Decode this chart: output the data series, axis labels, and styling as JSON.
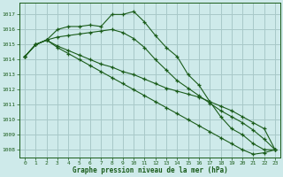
{
  "title": "Graphe pression niveau de la mer (hPa)",
  "bg_color": "#ceeaea",
  "grid_color": "#a8c8c8",
  "line_color": "#1a5c1a",
  "xlim": [
    -0.5,
    23.5
  ],
  "ylim": [
    1007.5,
    1017.8
  ],
  "yticks": [
    1008,
    1009,
    1010,
    1011,
    1012,
    1013,
    1014,
    1015,
    1016,
    1017
  ],
  "xticks": [
    0,
    1,
    2,
    3,
    4,
    5,
    6,
    7,
    8,
    9,
    10,
    11,
    12,
    13,
    14,
    15,
    16,
    17,
    18,
    19,
    20,
    21,
    22,
    23
  ],
  "series": [
    [
      1014.2,
      1015.0,
      1015.3,
      1016.0,
      1016.2,
      1016.2,
      1016.3,
      1016.2,
      1017.0,
      1017.0,
      1017.2,
      1016.5,
      1015.6,
      1014.8,
      1014.2,
      1013.0,
      1012.3,
      1011.2,
      1010.2,
      1009.4,
      1009.0,
      1008.4,
      1008.0,
      1008.0
    ],
    [
      1014.2,
      1015.0,
      1015.3,
      1015.5,
      1015.6,
      1015.7,
      1015.8,
      1015.9,
      1016.0,
      1015.8,
      1015.4,
      1014.8,
      1014.0,
      1013.3,
      1012.6,
      1012.1,
      1011.6,
      1011.1,
      1010.6,
      1010.2,
      1009.8,
      1009.3,
      1008.7,
      1008.0
    ],
    [
      1014.2,
      1015.0,
      1015.3,
      1014.9,
      1014.6,
      1014.3,
      1014.0,
      1013.7,
      1013.5,
      1013.2,
      1013.0,
      1012.7,
      1012.4,
      1012.1,
      1011.9,
      1011.7,
      1011.5,
      1011.2,
      1010.9,
      1010.6,
      1010.2,
      1009.8,
      1009.4,
      1008.0
    ],
    [
      1014.2,
      1015.0,
      1015.3,
      1014.8,
      1014.4,
      1014.0,
      1013.6,
      1013.2,
      1012.8,
      1012.4,
      1012.0,
      1011.6,
      1011.2,
      1010.8,
      1010.4,
      1010.0,
      1009.6,
      1009.2,
      1008.8,
      1008.4,
      1008.0,
      1007.7,
      1007.8,
      1008.0
    ]
  ]
}
